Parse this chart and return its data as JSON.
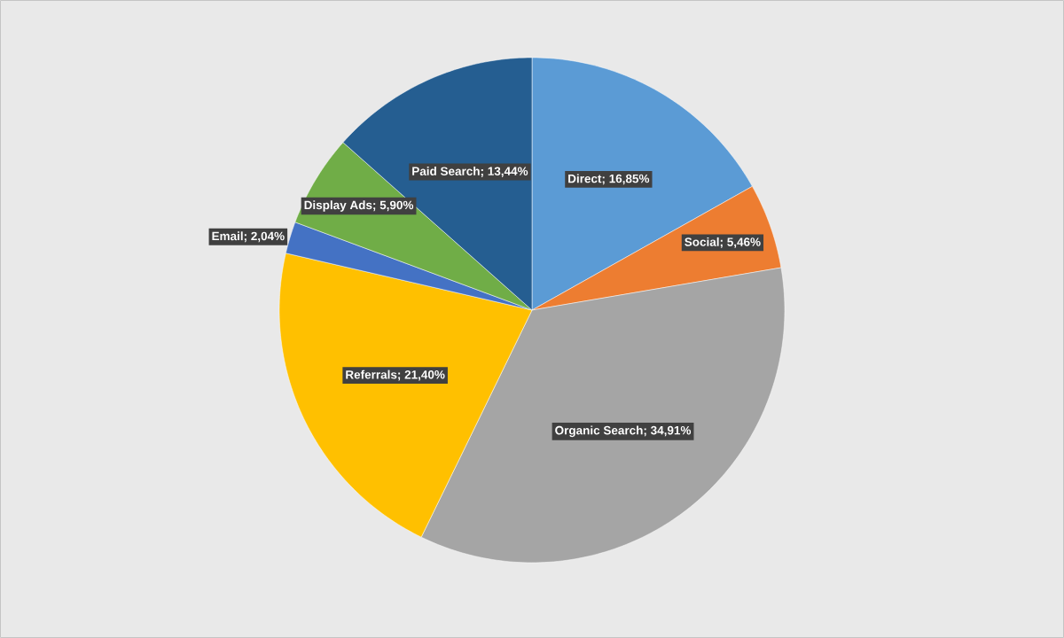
{
  "chart_data": {
    "type": "pie",
    "categories": [
      null,
      null,
      null,
      null,
      null,
      null,
      null
    ],
    "values": [
      16.85,
      5.46,
      34.91,
      21.4,
      2.04,
      5.9,
      13.44
    ],
    "colors": [
      "#5b9bd5",
      "#ed7d31",
      "#a5a5a5",
      "#ffc000",
      "#4472c4",
      "#70ad47",
      "#255e91"
    ],
    "value_labels": [
      "Direct; 16,85%",
      "Social; 5,46%",
      "Organic Search; 34,91%",
      "Referrals; 21,40%",
      "Email; 2,04%",
      "Display Ads; 5,90%",
      "Paid Search; 13,44%"
    ]
  }
}
